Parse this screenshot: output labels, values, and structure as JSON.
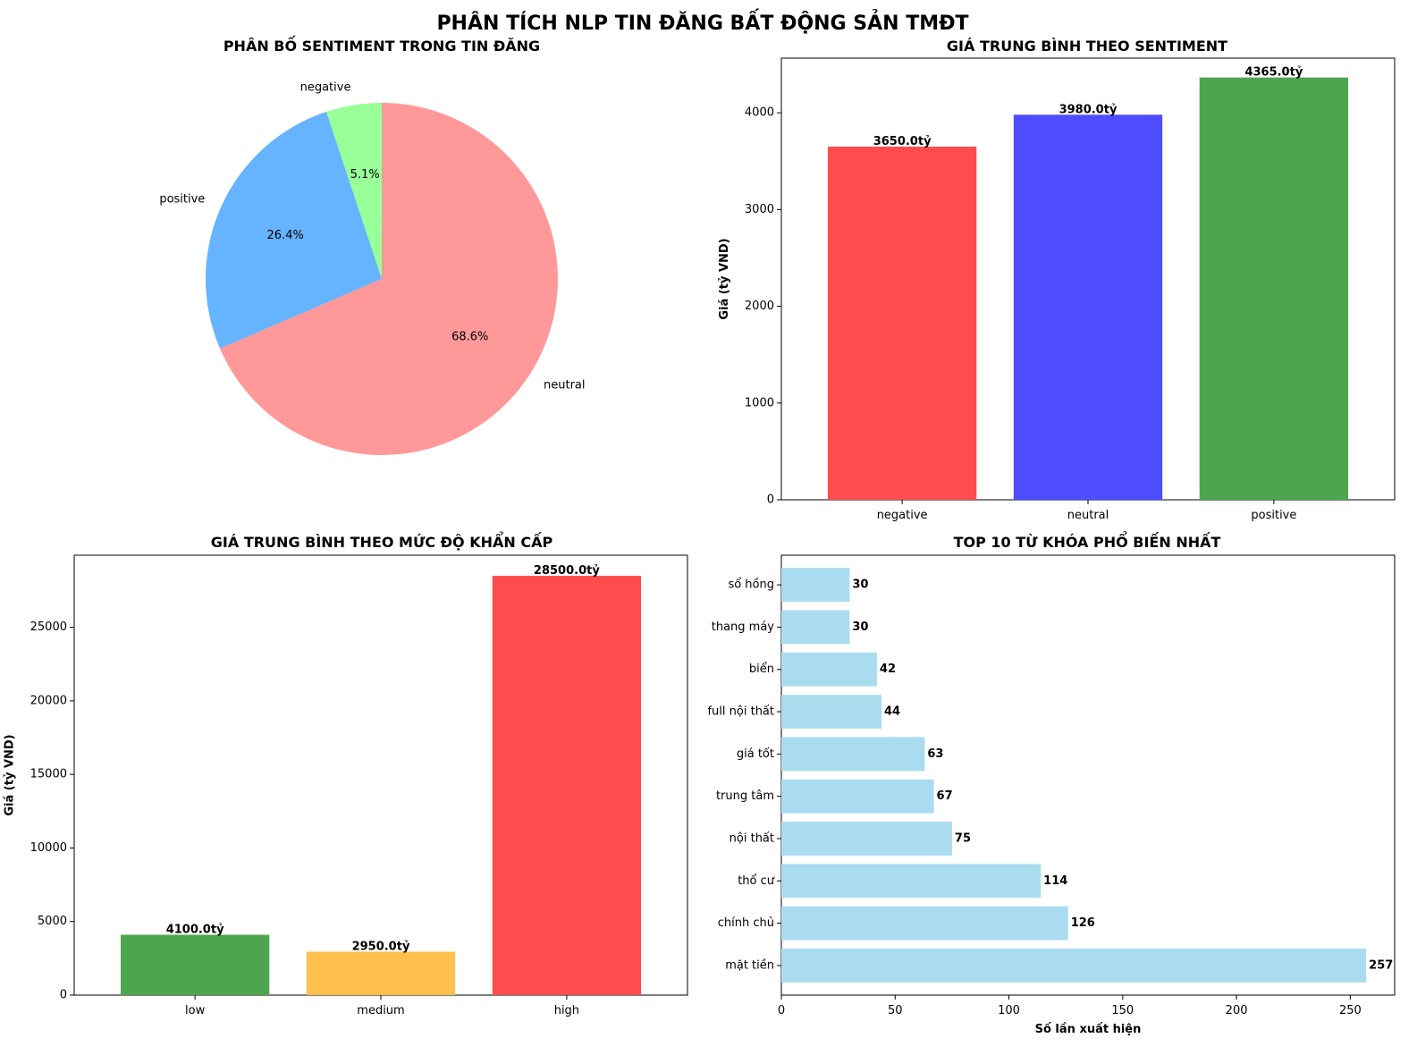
{
  "figure": {
    "title": "PHÂN TÍCH NLP TIN ĐĂNG BẤT ĐỘNG SẢN TMĐT"
  },
  "chart_data": [
    {
      "type": "pie",
      "title": "PHÂN BỐ SENTIMENT TRONG TIN ĐĂNG",
      "categories": [
        "negative",
        "positive",
        "neutral"
      ],
      "values": [
        5.1,
        26.4,
        68.6
      ],
      "value_labels": [
        "5.1%",
        "26.4%",
        "68.6%"
      ],
      "colors": [
        "#99ff99",
        "#66b3ff",
        "#ff9999"
      ],
      "start_angle": 90
    },
    {
      "type": "bar",
      "title": "GIÁ TRUNG BÌNH THEO SENTIMENT",
      "xlabel": "",
      "ylabel": "Giá (tỷ VND)",
      "categories": [
        "negative",
        "neutral",
        "positive"
      ],
      "values": [
        3650.0,
        3980.0,
        4365.0
      ],
      "value_labels": [
        "3650.0tỷ",
        "3980.0tỷ",
        "4365.0tỷ"
      ],
      "colors": [
        "#ff4d4d",
        "#4d4dff",
        "#4da64d"
      ],
      "ylim": [
        0,
        4565
      ],
      "yticks": [
        0,
        1000,
        2000,
        3000,
        4000
      ]
    },
    {
      "type": "bar",
      "title": "GIÁ TRUNG BÌNH THEO MỨC ĐỘ KHẨN CẤP",
      "xlabel": "",
      "ylabel": "Giá (tỷ VND)",
      "categories": [
        "low",
        "medium",
        "high"
      ],
      "values": [
        4100.0,
        2950.0,
        28500.0
      ],
      "value_labels": [
        "4100.0tỷ",
        "2950.0tỷ",
        "28500.0tỷ"
      ],
      "colors": [
        "#4da64d",
        "#ffbf4d",
        "#ff4d4d"
      ],
      "ylim": [
        0,
        29900
      ],
      "yticks": [
        0,
        5000,
        10000,
        15000,
        20000,
        25000
      ]
    },
    {
      "type": "bar",
      "orientation": "horizontal",
      "title": "TOP 10 TỪ KHÓA PHỔ BIẾN NHẤT",
      "xlabel": "Số lần xuất hiện",
      "ylabel": "",
      "categories": [
        "mặt tiền",
        "chính chủ",
        "thổ cư",
        "nội thất",
        "trung tâm",
        "giá tốt",
        "full nội thất",
        "biển",
        "thang máy",
        "sổ hồng"
      ],
      "values": [
        257,
        126,
        114,
        75,
        67,
        63,
        44,
        42,
        30,
        30
      ],
      "value_labels": [
        "257",
        "126",
        "114",
        "75",
        "67",
        "63",
        "44",
        "42",
        "30",
        "30"
      ],
      "color": "#a9dcef",
      "xlim": [
        0,
        269.5
      ],
      "xticks": [
        0,
        50,
        100,
        150,
        200,
        250
      ]
    }
  ]
}
